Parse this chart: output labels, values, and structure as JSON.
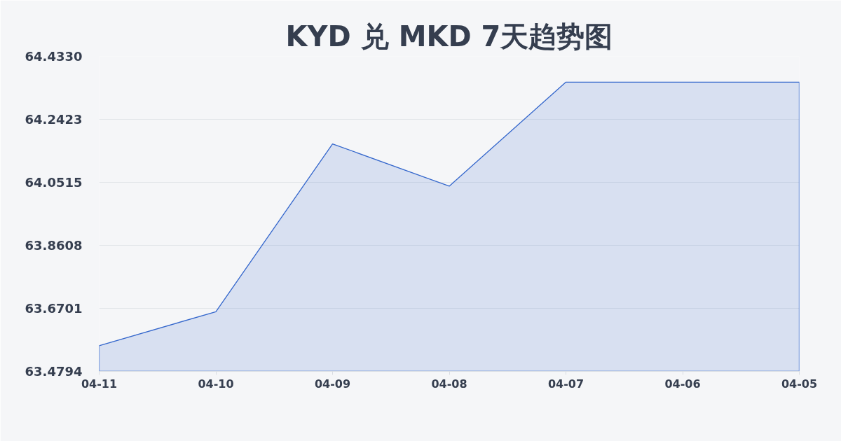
{
  "chart_data": {
    "type": "area",
    "title": "KYD 兑 MKD 7天趋势图",
    "categories": [
      "04-11",
      "04-10",
      "04-09",
      "04-08",
      "04-07",
      "04-06",
      "04-05"
    ],
    "series": [
      {
        "color": "#3366cc",
        "values": [
          63.557,
          63.66,
          64.168,
          64.04,
          64.355,
          64.355,
          64.355
        ]
      }
    ],
    "ylim": [
      63.4794,
      64.433
    ],
    "yticks": [
      {
        "value": 63.4794,
        "label": "63.4794"
      },
      {
        "value": 63.6701,
        "label": "63.6701"
      },
      {
        "value": 63.8608,
        "label": "63.8608"
      },
      {
        "value": 64.0515,
        "label": "64.0515"
      },
      {
        "value": 64.2423,
        "label": "64.2423"
      },
      {
        "value": 64.433,
        "label": "64.4330"
      }
    ],
    "grid": "y"
  }
}
